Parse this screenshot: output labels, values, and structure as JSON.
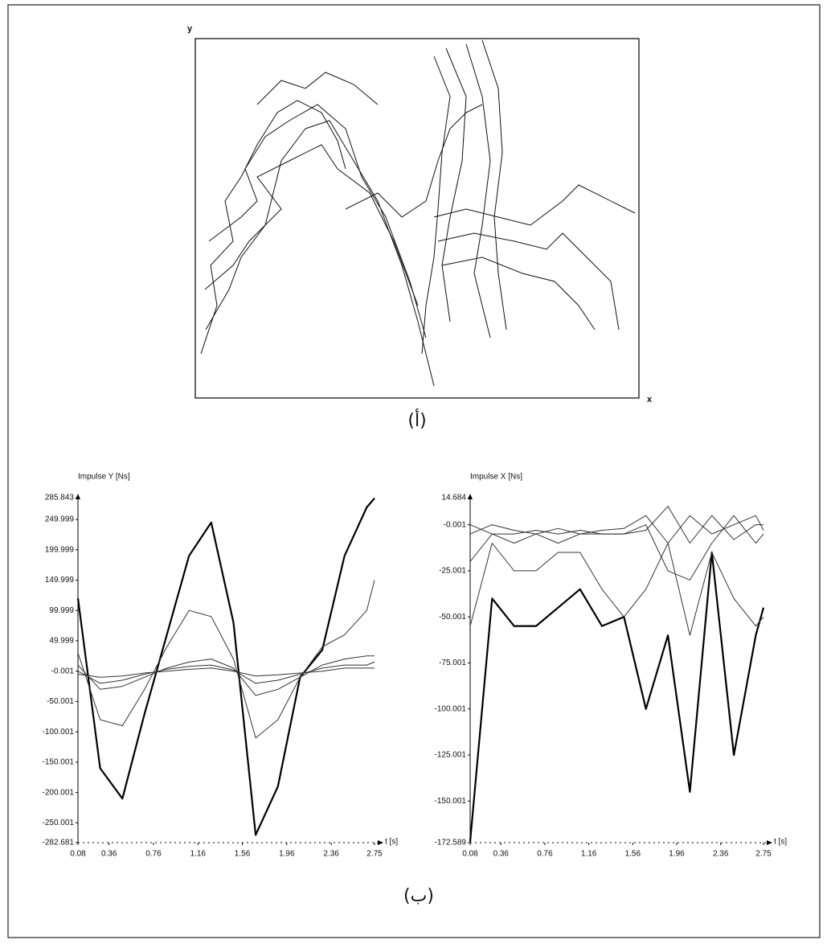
{
  "panel_a": {
    "y_label": "y",
    "x_label": "x",
    "caption": "(أ)"
  },
  "panel_b": {
    "caption": "(ب)"
  },
  "chart_data": [
    {
      "type": "line",
      "y_label": "Impulse Y [Ns]",
      "x_label": "t [s]",
      "x": [
        0.08,
        0.28,
        0.48,
        0.68,
        0.88,
        1.08,
        1.28,
        1.48,
        1.68,
        1.88,
        2.08,
        2.28,
        2.48,
        2.68,
        2.75
      ],
      "xlim": [
        0.08,
        2.75
      ],
      "xticks": [
        0.08,
        0.36,
        0.76,
        1.16,
        1.56,
        1.96,
        2.36,
        2.75
      ],
      "ylim": [
        -282.681,
        285.843
      ],
      "yticks": [
        -282.681,
        -250.001,
        -200.001,
        -150.001,
        -100.001,
        -50.001,
        -0.001,
        49.999,
        99.999,
        149.999,
        199.999,
        249.999,
        285.843
      ],
      "grid": false,
      "series": [
        {
          "color": "#000000",
          "line_width": 2.2,
          "values": [
            120,
            -160,
            -210,
            -70,
            60,
            190,
            245,
            80,
            -270,
            -190,
            -10,
            35,
            190,
            270,
            285
          ]
        },
        {
          "color": "#333333",
          "line_width": 1,
          "values": [
            30,
            -80,
            -90,
            -30,
            40,
            100,
            90,
            20,
            -110,
            -80,
            -10,
            40,
            60,
            100,
            150
          ]
        },
        {
          "color": "#333333",
          "line_width": 1,
          "values": [
            10,
            -30,
            -25,
            -10,
            5,
            15,
            20,
            5,
            -40,
            -30,
            -10,
            10,
            20,
            25,
            25
          ]
        },
        {
          "color": "#333333",
          "line_width": 1,
          "values": [
            0,
            -20,
            -15,
            -5,
            3,
            8,
            10,
            2,
            -20,
            -15,
            -5,
            5,
            10,
            10,
            15
          ]
        },
        {
          "color": "#333333",
          "line_width": 1,
          "values": [
            -5,
            -10,
            -8,
            -3,
            0,
            3,
            5,
            0,
            -8,
            -6,
            -3,
            0,
            5,
            5,
            5
          ]
        }
      ]
    },
    {
      "type": "line",
      "y_label": "Impulse X [Ns]",
      "x_label": "t [s]",
      "x": [
        0.08,
        0.28,
        0.48,
        0.68,
        0.88,
        1.08,
        1.28,
        1.48,
        1.68,
        1.88,
        2.08,
        2.28,
        2.48,
        2.68,
        2.75
      ],
      "xlim": [
        0.08,
        2.75
      ],
      "xticks": [
        0.08,
        0.36,
        0.76,
        1.16,
        1.56,
        1.96,
        2.36,
        2.75
      ],
      "ylim": [
        -172.589,
        14.684
      ],
      "yticks": [
        -172.589,
        -150.001,
        -125.001,
        -100.001,
        -75.001,
        -50.001,
        -25.001,
        -0.001,
        14.684
      ],
      "grid": false,
      "series": [
        {
          "color": "#000000",
          "line_width": 2.2,
          "values": [
            -172,
            -40,
            -55,
            -55,
            -45,
            -35,
            -55,
            -50,
            -100,
            -60,
            -145,
            -15,
            -125,
            -60,
            -45
          ]
        },
        {
          "color": "#333333",
          "line_width": 1,
          "values": [
            -55,
            -10,
            -25,
            -25,
            -15,
            -15,
            -35,
            -50,
            -35,
            -10,
            -60,
            -15,
            -40,
            -55,
            -50
          ]
        },
        {
          "color": "#333333",
          "line_width": 1,
          "values": [
            -20,
            -5,
            -10,
            -5,
            -10,
            -5,
            -5,
            -5,
            0,
            -25,
            -30,
            -10,
            5,
            -10,
            -5
          ]
        },
        {
          "color": "#333333",
          "line_width": 1,
          "values": [
            -5,
            0,
            -3,
            -5,
            -2,
            -5,
            -3,
            -2,
            5,
            -10,
            5,
            -5,
            0,
            5,
            -3
          ]
        },
        {
          "color": "#333333",
          "line_width": 1,
          "values": [
            0,
            -5,
            -5,
            -3,
            -5,
            -3,
            -5,
            -5,
            -3,
            10,
            -10,
            5,
            -8,
            0,
            0
          ]
        }
      ]
    }
  ]
}
